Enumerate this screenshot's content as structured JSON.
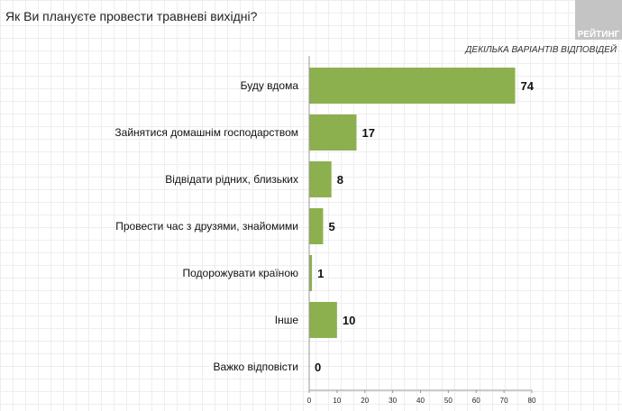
{
  "chart_data": {
    "type": "bar",
    "orientation": "horizontal",
    "title": "Як Ви плануєте провести травневі вихідні?",
    "subtitle": "ДЕКІЛЬКА ВАРІАНТІВ ВІДПОВІДЕЙ",
    "logo": "РЕЙТИНГ",
    "categories": [
      "Буду вдома",
      "Зайнятися домашнім господарством",
      "Відвідати рідних, близьких",
      "Провести час з друзями, знайомими",
      "Подорожувати країною",
      "Інше",
      "Важко відповісти"
    ],
    "values": [
      74,
      17,
      8,
      5,
      1,
      10,
      0
    ],
    "xlim": [
      0,
      80
    ],
    "xticks": [
      0,
      10,
      20,
      30,
      40,
      50,
      60,
      70,
      80
    ],
    "color": "#8db04f",
    "xlabel": "",
    "ylabel": ""
  }
}
